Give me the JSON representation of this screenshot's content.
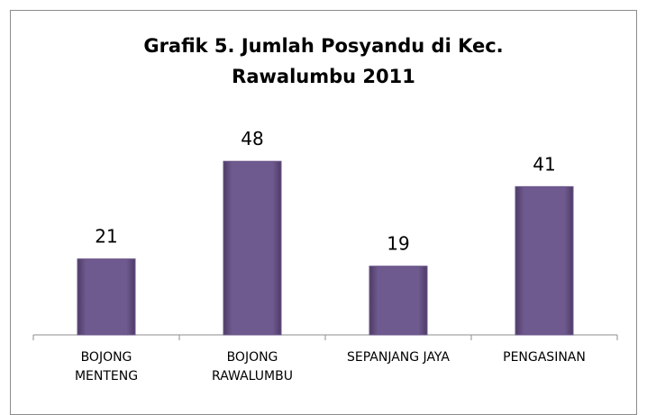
{
  "chart_data": {
    "type": "bar",
    "title": "Grafik 5. Jumlah Posyandu di Kec. Rawalumbu 2011",
    "categories": [
      "BOJONG\nMENTENG",
      "BOJONG\nRAWALUMBU",
      "SEPANJANG JAYA",
      "PENGASINAN"
    ],
    "values": [
      21,
      48,
      19,
      41
    ],
    "color": "#6a5489",
    "ylim": [
      0,
      60
    ]
  }
}
